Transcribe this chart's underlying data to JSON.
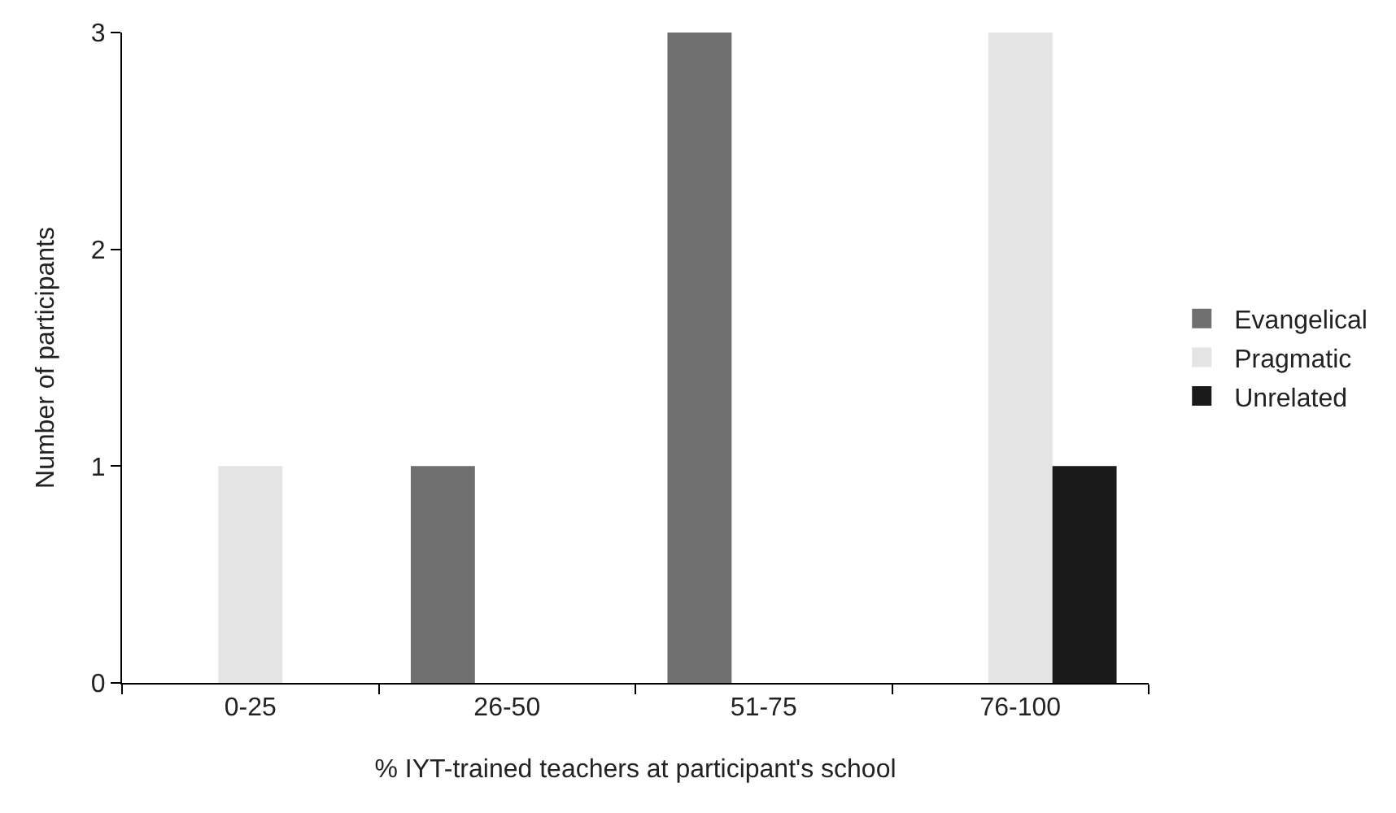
{
  "chart_data": {
    "type": "bar",
    "xlabel": "% IYT-trained teachers at participant's school",
    "ylabel": "Number of participants",
    "categories": [
      "0-25",
      "26-50",
      "51-75",
      "76-100"
    ],
    "series": [
      {
        "name": "Evangelical",
        "color": "#6f6f6f",
        "values": [
          0,
          1,
          3,
          0
        ]
      },
      {
        "name": "Pragmatic",
        "color": "#e4e4e4",
        "values": [
          1,
          0,
          0,
          3
        ]
      },
      {
        "name": "Unrelated",
        "color": "#1a1a1a",
        "values": [
          0,
          0,
          0,
          1
        ]
      }
    ],
    "ylim": [
      0,
      3
    ],
    "yticks": [
      0,
      1,
      2,
      3
    ],
    "grid": false,
    "legend": "right"
  }
}
